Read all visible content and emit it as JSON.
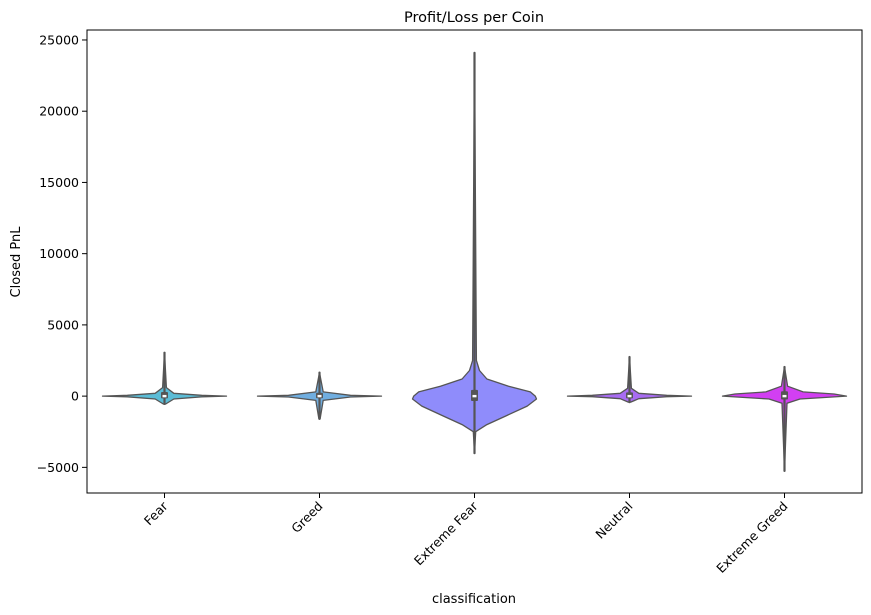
{
  "chart_data": {
    "type": "violin",
    "title": "Profit/Loss per Coin",
    "xlabel": "classification",
    "ylabel": "Closed PnL",
    "ylim": [
      -6800,
      25700
    ],
    "yticks": [
      -5000,
      0,
      5000,
      10000,
      15000,
      20000,
      25000
    ],
    "ytick_labels": [
      "−5000",
      "0",
      "5000",
      "10000",
      "15000",
      "20000",
      "25000"
    ],
    "grid": false,
    "legend": "none",
    "categories": [
      "Fear",
      "Greed",
      "Extreme Fear",
      "Neutral",
      "Extreme Greed"
    ],
    "series": [
      {
        "category": "Fear",
        "color": "#5bbcd6",
        "min": -550,
        "q1": -20,
        "median": 0,
        "q3": 150,
        "max": 3050,
        "profile": [
          [
            -550,
            0.02
          ],
          [
            -200,
            0.15
          ],
          [
            -50,
            0.6
          ],
          [
            0,
            1.0
          ],
          [
            60,
            0.6
          ],
          [
            200,
            0.15
          ],
          [
            600,
            0.03
          ],
          [
            3050,
            0.0
          ]
        ]
      },
      {
        "category": "Greed",
        "color": "#70aee0",
        "min": -1600,
        "q1": -10,
        "median": 0,
        "q3": 100,
        "max": 1650,
        "profile": [
          [
            -1600,
            0.01
          ],
          [
            -300,
            0.06
          ],
          [
            -60,
            0.5
          ],
          [
            0,
            1.0
          ],
          [
            60,
            0.5
          ],
          [
            300,
            0.06
          ],
          [
            1650,
            0.0
          ]
        ]
      },
      {
        "category": "Extreme Fear",
        "color": "#8f8cfb",
        "min": -4000,
        "q1": -200,
        "median": 0,
        "q3": 300,
        "max": 24100,
        "profile": [
          [
            -4000,
            0.0
          ],
          [
            -2500,
            0.02
          ],
          [
            -2000,
            0.2
          ],
          [
            -1400,
            0.5
          ],
          [
            -700,
            0.85
          ],
          [
            -200,
            1.0
          ],
          [
            0,
            0.98
          ],
          [
            300,
            0.9
          ],
          [
            700,
            0.55
          ],
          [
            1200,
            0.2
          ],
          [
            1800,
            0.08
          ],
          [
            2500,
            0.03
          ],
          [
            24100,
            0.0
          ]
        ]
      },
      {
        "category": "Neutral",
        "color": "#a86cf2",
        "min": -420,
        "q1": -20,
        "median": 0,
        "q3": 120,
        "max": 2750,
        "profile": [
          [
            -420,
            0.02
          ],
          [
            -180,
            0.15
          ],
          [
            -40,
            0.6
          ],
          [
            0,
            1.0
          ],
          [
            60,
            0.6
          ],
          [
            200,
            0.15
          ],
          [
            550,
            0.03
          ],
          [
            2750,
            0.0
          ]
        ]
      },
      {
        "category": "Extreme Greed",
        "color": "#d23ff2",
        "min": -5250,
        "q1": -100,
        "median": 0,
        "q3": 200,
        "max": 2050,
        "profile": [
          [
            -5250,
            0.0
          ],
          [
            -500,
            0.04
          ],
          [
            -200,
            0.25
          ],
          [
            0,
            1.0
          ],
          [
            150,
            0.8
          ],
          [
            300,
            0.3
          ],
          [
            700,
            0.05
          ],
          [
            2050,
            0.0
          ]
        ]
      }
    ]
  }
}
